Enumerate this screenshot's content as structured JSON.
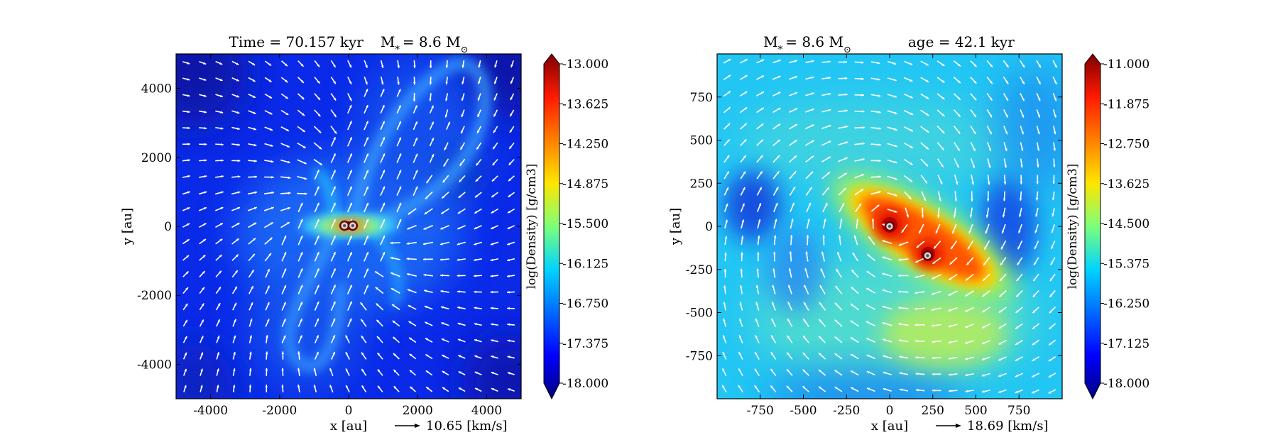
{
  "chart_data": [
    {
      "type": "heatmap",
      "title": "Time = 70.157 kyr    M_* = 8.6 M_⊙",
      "title_parts": {
        "time": "Time = 70.157 kyr",
        "mass_prefix": "M",
        "mass_sub": "*",
        "mass_value": "= 8.6 M",
        "mass_unit_sub": "⊙"
      },
      "xlabel": "x [au]",
      "ylabel": "y [au]",
      "xlim": [
        -5000,
        5000
      ],
      "ylim": [
        -5000,
        5000
      ],
      "xticks": [
        -4000,
        -2000,
        0,
        2000,
        4000
      ],
      "xtick_labels": [
        "-4000",
        "-2000",
        "0",
        "2000",
        "4000"
      ],
      "yticks": [
        4000,
        2000,
        0,
        -2000,
        -4000
      ],
      "ytick_labels": [
        "4000",
        "2000",
        "0",
        "-2000",
        "-4000"
      ],
      "velocity_key": "10.65 [km/s]",
      "colorbar": {
        "label": "log(Density) [g/cm3]",
        "range": [
          -18.0,
          -13.0
        ],
        "ticks": [
          -13.0,
          -13.625,
          -14.25,
          -14.875,
          -15.5,
          -16.125,
          -16.75,
          -17.375,
          -18.0
        ],
        "tick_labels": [
          "-13.000",
          "-13.625",
          "-14.250",
          "-14.875",
          "-15.500",
          "-16.125",
          "-16.750",
          "-17.375",
          "-18.000"
        ]
      },
      "stars": [
        {
          "x": -120,
          "y": 20
        },
        {
          "x": 120,
          "y": 20
        }
      ]
    },
    {
      "type": "heatmap",
      "title": "M_* = 8.6 M_⊙          age = 42.1 kyr",
      "title_parts": {
        "mass_prefix": "M",
        "mass_sub": "*",
        "mass_value": "= 8.6 M",
        "mass_unit_sub": "⊙",
        "age": "age = 42.1 kyr"
      },
      "xlabel": "x [au]",
      "ylabel": "y [au]",
      "xlim": [
        -1000,
        1000
      ],
      "ylim": [
        -1000,
        1000
      ],
      "xticks": [
        -750,
        -500,
        -250,
        0,
        250,
        500,
        750
      ],
      "xtick_labels": [
        "-750",
        "-500",
        "-250",
        "0",
        "250",
        "500",
        "750"
      ],
      "yticks": [
        750,
        500,
        250,
        0,
        -250,
        -500,
        -750
      ],
      "ytick_labels": [
        "750",
        "500",
        "250",
        "0",
        "-250",
        "-500",
        "-750"
      ],
      "velocity_key": "18.69 [km/s]",
      "colorbar": {
        "label": "log(Density) [g/cm3]",
        "range": [
          -18.0,
          -11.0
        ],
        "ticks": [
          -11.0,
          -11.875,
          -12.75,
          -13.625,
          -14.5,
          -15.375,
          -16.25,
          -17.125,
          -18.0
        ],
        "tick_labels": [
          "-11.000",
          "-11.875",
          "-12.750",
          "-13.625",
          "-14.500",
          "-15.375",
          "-16.250",
          "-17.125",
          "-18.000"
        ]
      },
      "stars": [
        {
          "x": 0,
          "y": 0
        },
        {
          "x": 220,
          "y": -170
        }
      ]
    }
  ]
}
